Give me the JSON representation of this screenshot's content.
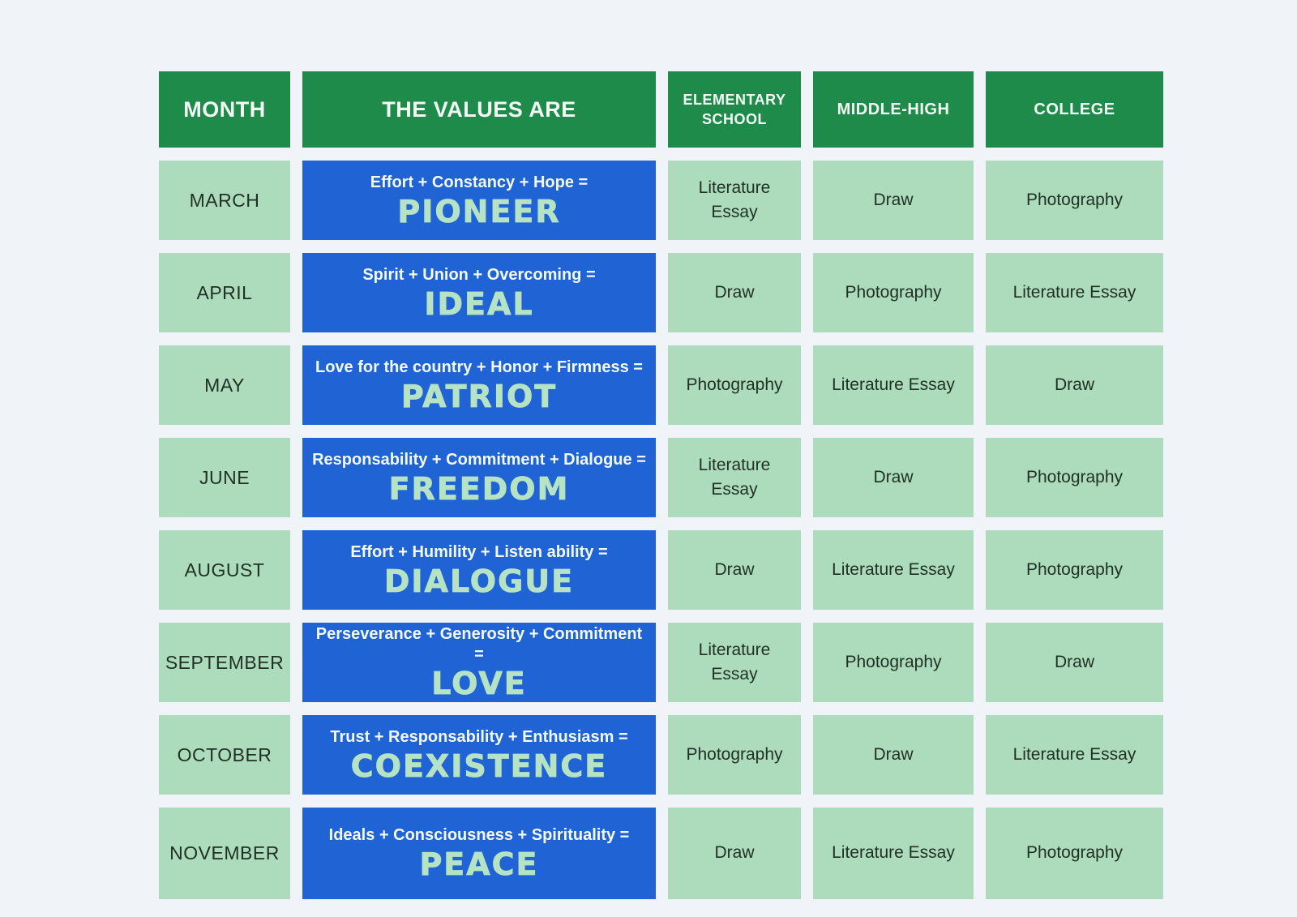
{
  "colors": {
    "header_green": "#1e8b4a",
    "cell_light_green": "#addcbc",
    "value_blue": "#2063d4",
    "value_word_green": "#b5e3c4",
    "background": "#f0f3f8",
    "dark_text": "#1f3024",
    "header_text": "#f3faf5"
  },
  "header": {
    "columns": [
      "MONTH",
      "THE VALUES ARE",
      "ELEMENTARY SCHOOL",
      "MIDDLE-HIGH",
      "COLLEGE"
    ]
  },
  "rows": [
    {
      "month": "MARCH",
      "formula": "Effort + Constancy + Hope =",
      "value": "PIONEER",
      "elementary": "Literature Essay",
      "middle_high": "Draw",
      "college": "Photography"
    },
    {
      "month": "APRIL",
      "formula": "Spirit + Union + Overcoming =",
      "value": "IDEAL",
      "elementary": "Draw",
      "middle_high": "Photography",
      "college": "Literature Essay"
    },
    {
      "month": "MAY",
      "formula": "Love for the country + Honor + Firmness =",
      "value": "PATRIOT",
      "elementary": "Photography",
      "middle_high": "Literature Essay",
      "college": "Draw"
    },
    {
      "month": "JUNE",
      "formula": "Responsability + Commitment + Dialogue =",
      "value": "FREEDOM",
      "elementary": "Literature Essay",
      "middle_high": "Draw",
      "college": "Photography"
    },
    {
      "month": "AUGUST",
      "formula": "Effort + Humility + Listen ability =",
      "value": "DIALOGUE",
      "elementary": "Draw",
      "middle_high": "Literature Essay",
      "college": "Photography"
    },
    {
      "month": "SEPTEMBER",
      "formula": "Perseverance + Generosity + Commitment =",
      "value": "LOVE",
      "elementary": "Literature Essay",
      "middle_high": "Photography",
      "college": "Draw"
    },
    {
      "month": "OCTOBER",
      "formula": "Trust + Responsability + Enthusiasm =",
      "value": "COEXISTENCE",
      "elementary": "Photography",
      "middle_high": "Draw",
      "college": "Literature Essay"
    },
    {
      "month": "NOVEMBER",
      "formula": "Ideals + Consciousness + Spirituality =",
      "value": "PEACE",
      "elementary": "Draw",
      "middle_high": "Literature Essay",
      "college": "Photography"
    }
  ],
  "chart_data": {
    "type": "table",
    "columns": [
      "MONTH",
      "THE VALUES ARE",
      "ELEMENTARY SCHOOL",
      "MIDDLE-HIGH",
      "COLLEGE"
    ],
    "rows": [
      [
        "MARCH",
        "Effort + Constancy + Hope = PIONEER",
        "Literature Essay",
        "Draw",
        "Photography"
      ],
      [
        "APRIL",
        "Spirit + Union + Overcoming = IDEAL",
        "Draw",
        "Photography",
        "Literature Essay"
      ],
      [
        "MAY",
        "Love for the country + Honor + Firmness = PATRIOT",
        "Photography",
        "Literature Essay",
        "Draw"
      ],
      [
        "JUNE",
        "Responsability + Commitment + Dialogue = FREEDOM",
        "Literature Essay",
        "Draw",
        "Photography"
      ],
      [
        "AUGUST",
        "Effort + Humility + Listen ability = DIALOGUE",
        "Draw",
        "Literature Essay",
        "Photography"
      ],
      [
        "SEPTEMBER",
        "Perseverance + Generosity + Commitment = LOVE",
        "Literature Essay",
        "Photography",
        "Draw"
      ],
      [
        "OCTOBER",
        "Trust + Responsability + Enthusiasm = COEXISTENCE",
        "Photography",
        "Draw",
        "Literature Essay"
      ],
      [
        "NOVEMBER",
        "Ideals + Consciousness + Spirituality = PEACE",
        "Draw",
        "Literature Essay",
        "Photography"
      ]
    ]
  }
}
